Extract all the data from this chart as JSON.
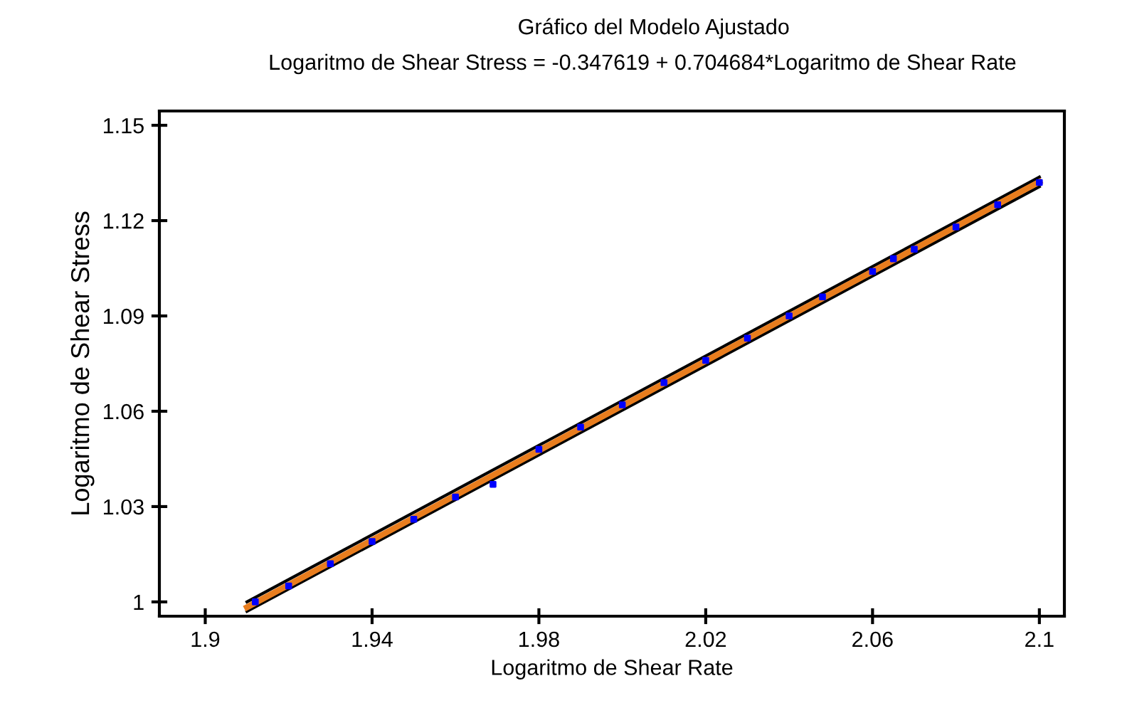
{
  "chart_data": {
    "type": "scatter",
    "title": "Gráfico del Modelo Ajustado",
    "subtitle": "Logaritmo de Shear Stress = -0.347619 + 0.704684*Logaritmo de Shear Rate",
    "xlabel": "Logaritmo de Shear Rate",
    "ylabel": "Logaritmo de Shear Stress",
    "xlim": [
      1.889,
      2.106
    ],
    "ylim": [
      0.9955,
      1.1545
    ],
    "xticks": [
      {
        "value": 1.9,
        "label": "1.9"
      },
      1.94,
      1.98,
      2.02,
      2.06,
      {
        "value": 2.1,
        "label": "2.1"
      }
    ],
    "yticks": [
      {
        "value": 1,
        "label": "1"
      },
      1.03,
      1.06,
      1.09,
      1.12,
      1.15
    ],
    "grid": false,
    "legend": false,
    "series": [
      {
        "type": "line",
        "color": "#000000",
        "x": [
          1.91,
          2.1
        ],
        "values": [
          1.0,
          1.1337
        ]
      },
      {
        "type": "line",
        "color": "#000000",
        "x": [
          1.91,
          2.1
        ],
        "values": [
          0.997,
          1.1307
        ]
      },
      {
        "type": "line",
        "color": "#e87d1e",
        "x": [
          1.91,
          2.1
        ],
        "values": [
          0.9983,
          1.1322
        ]
      },
      {
        "color": "#0000ff",
        "marker": "square",
        "x": [
          1.912,
          1.92,
          1.93,
          1.94,
          1.95,
          1.96,
          1.969,
          1.98,
          1.99,
          2.0,
          2.01,
          2.02,
          2.03,
          2.04,
          2.048,
          2.06,
          2.065,
          2.07,
          2.08,
          2.09,
          2.1
        ],
        "values": [
          1.0,
          1.005,
          1.012,
          1.019,
          1.026,
          1.033,
          1.037,
          1.048,
          1.055,
          1.062,
          1.069,
          1.076,
          1.083,
          1.09,
          1.096,
          1.104,
          1.108,
          1.111,
          1.118,
          1.125,
          1.132
        ]
      }
    ]
  }
}
